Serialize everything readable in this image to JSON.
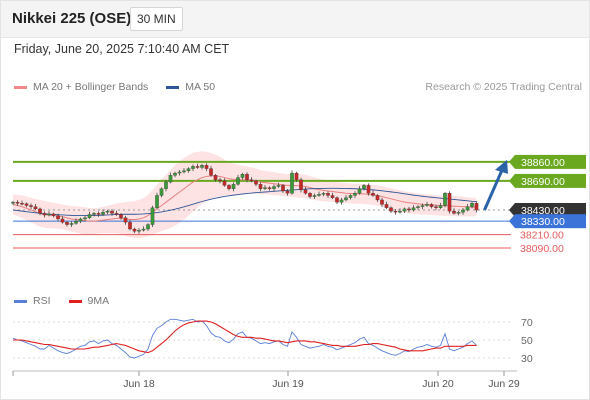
{
  "header": {
    "title": "Nikkei 225 (OSE)",
    "timeframe": "30 MIN"
  },
  "datetime": "Friday, June 20, 2025 7:10:40 AM CET",
  "legend_main": [
    {
      "label": "MA 20 + Bollinger Bands",
      "color": "#f08a8a"
    },
    {
      "label": "MA 50",
      "color": "#2f5597"
    }
  ],
  "credit": "Research © 2025 Trading Central",
  "legend_rsi": [
    {
      "label": "RSI",
      "color": "#5b7fd6"
    },
    {
      "label": "9MA",
      "color": "#e02020"
    }
  ],
  "colors": {
    "resistance": "#6aa820",
    "pivot": "#3b73d9",
    "support": "#e55b5b",
    "current": "#333333",
    "bull": "#3a9a3a",
    "bear": "#c62828",
    "arrow": "#2a63a8",
    "band_fill": "#fde0e0"
  },
  "chart_data": [
    {
      "type": "candlestick",
      "title": "Nikkei 225 (OSE)",
      "interval": "30 MIN",
      "x_ticks": [
        "Jun 18",
        "Jun 19",
        "Jun 20",
        "Jun 29"
      ],
      "ylim": [
        38050,
        39050
      ],
      "levels": [
        {
          "value": 38860.0,
          "label": "38860.00",
          "kind": "resistance"
        },
        {
          "value": 38690.0,
          "label": "38690.00",
          "kind": "resistance"
        },
        {
          "value": 38430.0,
          "label": "38430.00",
          "kind": "current"
        },
        {
          "value": 38330.0,
          "label": "38330.00",
          "kind": "pivot"
        },
        {
          "value": 38210.0,
          "label": "38210.00",
          "kind": "support"
        },
        {
          "value": 38090.0,
          "label": "38090.00",
          "kind": "support"
        }
      ],
      "close": [
        38500,
        38490,
        38485,
        38470,
        38460,
        38440,
        38400,
        38385,
        38395,
        38380,
        38350,
        38320,
        38300,
        38310,
        38330,
        38350,
        38360,
        38390,
        38400,
        38390,
        38410,
        38420,
        38400,
        38390,
        38360,
        38320,
        38260,
        38240,
        38250,
        38260,
        38300,
        38450,
        38560,
        38620,
        38680,
        38740,
        38760,
        38770,
        38780,
        38800,
        38820,
        38810,
        38830,
        38800,
        38740,
        38700,
        38690,
        38650,
        38620,
        38660,
        38720,
        38750,
        38700,
        38690,
        38660,
        38620,
        38630,
        38620,
        38640,
        38650,
        38600,
        38580,
        38760,
        38700,
        38610,
        38580,
        38550,
        38560,
        38570,
        38580,
        38560,
        38540,
        38500,
        38520,
        38540,
        38560,
        38580,
        38620,
        38650,
        38580,
        38560,
        38520,
        38480,
        38450,
        38420,
        38410,
        38420,
        38440,
        38430,
        38450,
        38460,
        38470,
        38480,
        38460,
        38450,
        38470,
        38580,
        38420,
        38400,
        38410,
        38430,
        38460,
        38490,
        38430
      ],
      "ma20": [
        38480,
        38470,
        38460,
        38445,
        38430,
        38415,
        38400,
        38390,
        38385,
        38380,
        38375,
        38370,
        38360,
        38350,
        38345,
        38340,
        38335,
        38330,
        38330,
        38335,
        38340,
        38345,
        38350,
        38355,
        38355,
        38350,
        38345,
        38345,
        38350,
        38360,
        38380,
        38410,
        38440,
        38470,
        38500,
        38530,
        38560,
        38590,
        38620,
        38650,
        38680,
        38700,
        38720,
        38730,
        38735,
        38735,
        38730,
        38720,
        38710,
        38705,
        38700,
        38700,
        38700,
        38695,
        38690,
        38680,
        38675,
        38670,
        38665,
        38660,
        38655,
        38650,
        38650,
        38648,
        38645,
        38640,
        38630,
        38620,
        38612,
        38605,
        38600,
        38595,
        38590,
        38585,
        38580,
        38578,
        38576,
        38575,
        38574,
        38570,
        38565,
        38560,
        38550,
        38540,
        38530,
        38520,
        38510,
        38500,
        38495,
        38490,
        38485,
        38480,
        38478,
        38475,
        38472,
        38470,
        38468,
        38466,
        38464,
        38462,
        38460,
        38458,
        38456,
        38455
      ],
      "ma50": [
        38430,
        38425,
        38420,
        38415,
        38410,
        38405,
        38400,
        38396,
        38392,
        38390,
        38388,
        38386,
        38384,
        38382,
        38381,
        38380,
        38380,
        38380,
        38381,
        38382,
        38384,
        38386,
        38388,
        38390,
        38391,
        38392,
        38392,
        38392,
        38393,
        38395,
        38398,
        38402,
        38407,
        38413,
        38420,
        38428,
        38437,
        38447,
        38458,
        38470,
        38482,
        38494,
        38506,
        38517,
        38527,
        38536,
        38544,
        38551,
        38557,
        38563,
        38568,
        38573,
        38577,
        38581,
        38585,
        38588,
        38591,
        38594,
        38597,
        38600,
        38603,
        38606,
        38609,
        38612,
        38615,
        38617,
        38619,
        38621,
        38622,
        38623,
        38624,
        38624,
        38624,
        38623,
        38622,
        38621,
        38620,
        38618,
        38616,
        38613,
        38610,
        38606,
        38602,
        38597,
        38592,
        38587,
        38581,
        38575,
        38569,
        38563,
        38558,
        38553,
        38548,
        38544,
        38540,
        38536,
        38532,
        38528,
        38524,
        38520,
        38516,
        38512,
        38508,
        38505
      ],
      "bollinger_width": [
        90,
        95,
        100,
        105,
        110,
        115,
        120,
        120,
        118,
        115,
        112,
        110,
        112,
        115,
        118,
        120,
        120,
        118,
        116,
        115,
        118,
        122,
        128,
        134,
        140,
        150,
        160,
        165,
        170,
        175,
        185,
        200,
        215,
        230,
        245,
        260,
        270,
        275,
        275,
        270,
        262,
        250,
        235,
        220,
        205,
        190,
        175,
        162,
        150,
        140,
        132,
        126,
        120,
        116,
        112,
        108,
        105,
        103,
        102,
        101,
        100,
        100,
        104,
        106,
        106,
        105,
        103,
        101,
        99,
        97,
        95,
        93,
        92,
        91,
        90,
        90,
        90,
        90,
        90,
        90,
        90,
        91,
        92,
        93,
        94,
        95,
        96,
        96,
        96,
        95,
        94,
        93,
        92,
        91,
        90,
        90,
        92,
        92,
        91,
        90,
        88,
        86,
        84,
        82
      ],
      "projection": {
        "from": 38430,
        "to": 38860
      }
    },
    {
      "type": "line",
      "title": "RSI",
      "ylim": [
        20,
        80
      ],
      "y_ticks": [
        70,
        50,
        30
      ],
      "series": [
        {
          "name": "RSI",
          "values": [
            52,
            50,
            49,
            47,
            45,
            43,
            40,
            40,
            44,
            41,
            38,
            36,
            35,
            37,
            40,
            43,
            44,
            48,
            49,
            46,
            49,
            50,
            46,
            44,
            40,
            36,
            31,
            30,
            32,
            34,
            40,
            55,
            63,
            66,
            70,
            73,
            73,
            72,
            71,
            72,
            73,
            70,
            71,
            66,
            58,
            54,
            53,
            49,
            47,
            51,
            57,
            59,
            53,
            52,
            49,
            46,
            47,
            46,
            48,
            49,
            45,
            43,
            59,
            53,
            45,
            43,
            41,
            42,
            43,
            45,
            43,
            42,
            39,
            41,
            43,
            45,
            47,
            51,
            53,
            46,
            44,
            41,
            38,
            36,
            34,
            33,
            35,
            38,
            37,
            40,
            42,
            43,
            45,
            43,
            42,
            44,
            57,
            40,
            38,
            40,
            42,
            46,
            49,
            44
          ]
        },
        {
          "name": "9MA",
          "values": [
            50,
            50,
            50,
            49,
            48,
            47,
            46,
            45,
            45,
            44,
            43,
            42,
            41,
            40,
            40,
            40,
            40,
            41,
            42,
            42,
            43,
            44,
            45,
            46,
            45,
            44,
            42,
            40,
            38,
            37,
            36,
            38,
            42,
            46,
            50,
            55,
            60,
            64,
            67,
            69,
            70,
            71,
            71,
            71,
            70,
            68,
            65,
            62,
            59,
            56,
            54,
            53,
            53,
            53,
            52,
            52,
            51,
            50,
            49,
            49,
            48,
            47,
            48,
            49,
            49,
            49,
            48,
            48,
            47,
            46,
            45,
            44,
            44,
            43,
            43,
            43,
            43,
            44,
            45,
            45,
            46,
            46,
            45,
            44,
            43,
            42,
            40,
            39,
            38,
            38,
            38,
            38,
            39,
            40,
            41,
            41,
            43,
            43,
            43,
            43,
            43,
            44,
            44,
            44
          ]
        }
      ]
    }
  ]
}
